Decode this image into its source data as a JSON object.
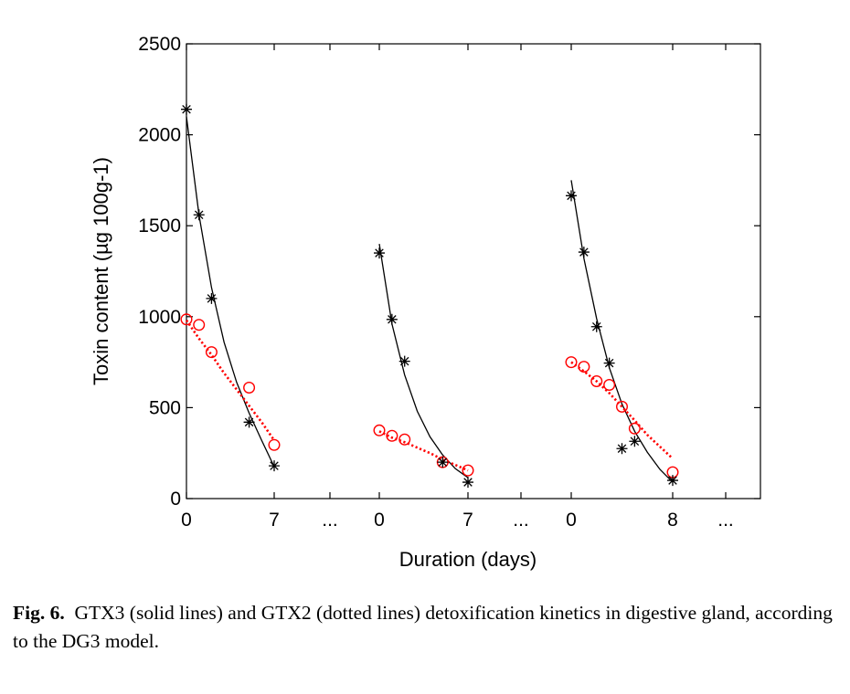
{
  "caption": {
    "label": "Fig. 6.",
    "text": "GTX3 (solid lines) and GTX2 (dotted lines) detoxification kinetics in digestive gland, according to the DG3 model."
  },
  "chart_data": {
    "type": "scatter",
    "xlabel": "Duration (days)",
    "ylabel": "Toxin content (µg 100g-1)",
    "ylim": [
      0,
      2500
    ],
    "yticks": [
      0,
      500,
      1000,
      1500,
      2000,
      2500
    ],
    "grid": false,
    "colors": {
      "gtx3": "#000000",
      "gtx2": "#ff0000"
    },
    "panels": [
      {
        "x_tick_labels": [
          "0",
          "7",
          "..."
        ],
        "xlim": [
          0,
          7
        ],
        "gtx3": {
          "points": [
            [
              0,
              2140
            ],
            [
              1,
              1560
            ],
            [
              2,
              1100
            ],
            [
              5,
              420
            ],
            [
              7,
              180
            ]
          ],
          "fit": [
            [
              0,
              2100
            ],
            [
              1,
              1560
            ],
            [
              2,
              1160
            ],
            [
              3,
              860
            ],
            [
              4,
              640
            ],
            [
              5,
              470
            ],
            [
              6,
              320
            ],
            [
              7,
              175
            ]
          ]
        },
        "gtx2": {
          "points": [
            [
              0,
              985
            ],
            [
              1,
              955
            ],
            [
              2,
              805
            ],
            [
              5,
              610
            ],
            [
              7,
              295
            ]
          ],
          "fit": [
            [
              0,
              980
            ],
            [
              1,
              880
            ],
            [
              2,
              790
            ],
            [
              3,
              690
            ],
            [
              4,
              600
            ],
            [
              5,
              510
            ],
            [
              6,
              420
            ],
            [
              7,
              320
            ]
          ]
        }
      },
      {
        "x_tick_labels": [
          "0",
          "7",
          "..."
        ],
        "xlim": [
          0,
          7
        ],
        "gtx3": {
          "points": [
            [
              0,
              1350
            ],
            [
              1,
              985
            ],
            [
              2,
              755
            ],
            [
              5,
              200
            ],
            [
              7,
              90
            ]
          ],
          "fit": [
            [
              0,
              1400
            ],
            [
              1,
              960
            ],
            [
              2,
              680
            ],
            [
              3,
              480
            ],
            [
              4,
              340
            ],
            [
              5,
              240
            ],
            [
              6,
              165
            ],
            [
              7,
              115
            ]
          ]
        },
        "gtx2": {
          "points": [
            [
              0,
              375
            ],
            [
              1,
              345
            ],
            [
              2,
              325
            ],
            [
              5,
              200
            ],
            [
              7,
              155
            ]
          ],
          "fit": [
            [
              0,
              370
            ],
            [
              1,
              335
            ],
            [
              2,
              310
            ],
            [
              3,
              280
            ],
            [
              4,
              250
            ],
            [
              5,
              215
            ],
            [
              6,
              185
            ],
            [
              7,
              155
            ]
          ]
        }
      },
      {
        "x_tick_labels": [
          "0",
          "8",
          "..."
        ],
        "xlim": [
          0,
          8
        ],
        "gtx3": {
          "points": [
            [
              0,
              1665
            ],
            [
              1,
              1355
            ],
            [
              2,
              945
            ],
            [
              3,
              745
            ],
            [
              4,
              275
            ],
            [
              5,
              315
            ],
            [
              8,
              100
            ]
          ],
          "fit": [
            [
              0,
              1750
            ],
            [
              1,
              1320
            ],
            [
              2,
              990
            ],
            [
              3,
              720
            ],
            [
              4,
              520
            ],
            [
              5,
              370
            ],
            [
              6,
              255
            ],
            [
              7,
              160
            ],
            [
              8,
              90
            ]
          ]
        },
        "gtx2": {
          "points": [
            [
              0,
              750
            ],
            [
              1,
              725
            ],
            [
              2,
              645
            ],
            [
              3,
              625
            ],
            [
              4,
              505
            ],
            [
              5,
              385
            ],
            [
              8,
              145
            ]
          ],
          "fit": [
            [
              0,
              750
            ],
            [
              1,
              700
            ],
            [
              2,
              645
            ],
            [
              3,
              580
            ],
            [
              4,
              505
            ],
            [
              5,
              430
            ],
            [
              6,
              350
            ],
            [
              7,
              285
            ],
            [
              8,
              220
            ]
          ]
        }
      }
    ]
  }
}
